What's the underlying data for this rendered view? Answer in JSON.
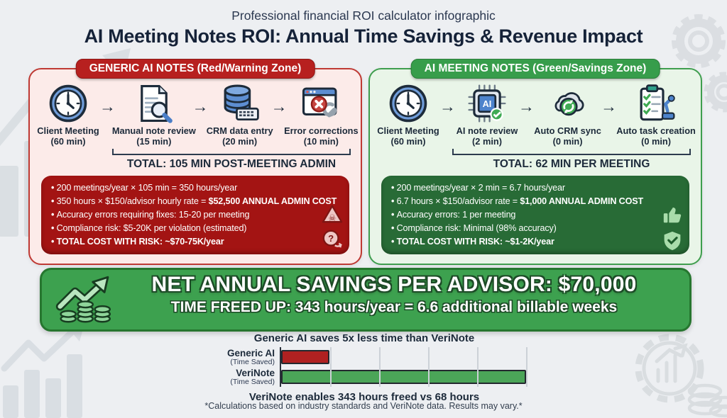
{
  "page": {
    "subtitle": "Professional financial ROI calculator infographic",
    "title": "AI Meeting Notes ROI: Annual Time Savings & Revenue Impact",
    "footnote": "*Calculations based on industry standards and VeriNote data. Results may vary.*"
  },
  "colors": {
    "warning_red": "#b7201f",
    "warning_panel_bg": "#fcebe9",
    "warning_box_bg": "#a31413",
    "savings_green": "#379d4b",
    "savings_panel_bg": "#e9f5e8",
    "savings_box_bg": "#286b36",
    "banner_green": "#3da14f",
    "text_navy": "#1c2a3a"
  },
  "panels": [
    {
      "header": "GENERIC AI NOTES (Red/Warning Zone)",
      "steps": [
        {
          "label": "Client Meeting",
          "time": "(60 min)",
          "icon": "clock-icon"
        },
        {
          "label": "Manual note review",
          "time": "(15 min)",
          "icon": "document-magnifier-icon"
        },
        {
          "label": "CRM data entry",
          "time": "(20 min)",
          "icon": "database-keyboard-icon"
        },
        {
          "label": "Error corrections",
          "time": "(10 min)",
          "icon": "error-wrench-icon"
        }
      ],
      "total": "TOTAL: 105 MIN POST-MEETING ADMIN",
      "cost_box": {
        "bullets": [
          {
            "pre": "200 meetings/year × 105 min = 350 hours/year",
            "bold": ""
          },
          {
            "pre": "350 hours × $150/advisor hourly rate = ",
            "bold": "$52,500 ANNUAL ADMIN COST"
          },
          {
            "pre": "Accuracy errors requiring fixes: 15-20 per meeting",
            "bold": ""
          },
          {
            "pre": "Compliance risk: $5-20K per violation (estimated)",
            "bold": ""
          },
          {
            "pre": "",
            "bold": "TOTAL COST WITH RISK: ~$70-75K/year"
          }
        ],
        "icons": [
          "skull-warning-icon",
          "question-risk-icon"
        ]
      }
    },
    {
      "header": "AI MEETING NOTES (Green/Savings Zone)",
      "steps": [
        {
          "label": "Client Meeting",
          "time": "(60 min)",
          "icon": "clock-icon"
        },
        {
          "label": "AI note review",
          "time": "(2 min)",
          "icon": "ai-chip-check-icon"
        },
        {
          "label": "Auto CRM sync",
          "time": "(0 min)",
          "icon": "cloud-sync-icon"
        },
        {
          "label": "Auto task creation",
          "time": "(0 min)",
          "icon": "clipboard-robot-icon"
        }
      ],
      "total": "TOTAL: 62 MIN PER MEETING",
      "cost_box": {
        "bullets": [
          {
            "pre": "200 meetings/year × 2 min = 6.7 hours/year",
            "bold": ""
          },
          {
            "pre": "6.7 hours × $150/advisor rate = ",
            "bold": "$1,000 ANNUAL ADMIN COST"
          },
          {
            "pre": "Accuracy errors: 1 per meeting",
            "bold": ""
          },
          {
            "pre": "Compliance risk: Minimal (98% accuracy)",
            "bold": ""
          },
          {
            "pre": "",
            "bold": "TOTAL COST WITH RISK: ~$1-2K/year"
          }
        ],
        "icons": [
          "thumbs-up-icon",
          "shield-check-icon"
        ]
      }
    }
  ],
  "banner": {
    "line1": "NET ANNUAL SAVINGS PER ADVISOR: $70,000",
    "line2": "TIME FREED UP: 343 hours/year = 6.6 additional billable weeks",
    "icon": "growth-chart-coins-icon"
  },
  "chart_data": {
    "type": "bar",
    "orientation": "horizontal",
    "title": "Generic AI saves 5x less time than VeriNote",
    "caption": "VeriNote enables 343 hours freed vs 68 hours",
    "categories": [
      "Generic AI",
      "VeriNote"
    ],
    "category_sublabels": [
      "(Time Saved)",
      "(Time Saved)"
    ],
    "values": [
      68,
      343
    ],
    "unit": "hours/year",
    "colors": [
      "#b02121",
      "#4ba558"
    ],
    "xlim": [
      0,
      343
    ],
    "grid": true,
    "legend": "none"
  },
  "decor_icons": [
    "bar-chart-sketch-icon",
    "gears-icon",
    "bar-chart-sketch-icon",
    "gear-chart-coins-icon"
  ]
}
